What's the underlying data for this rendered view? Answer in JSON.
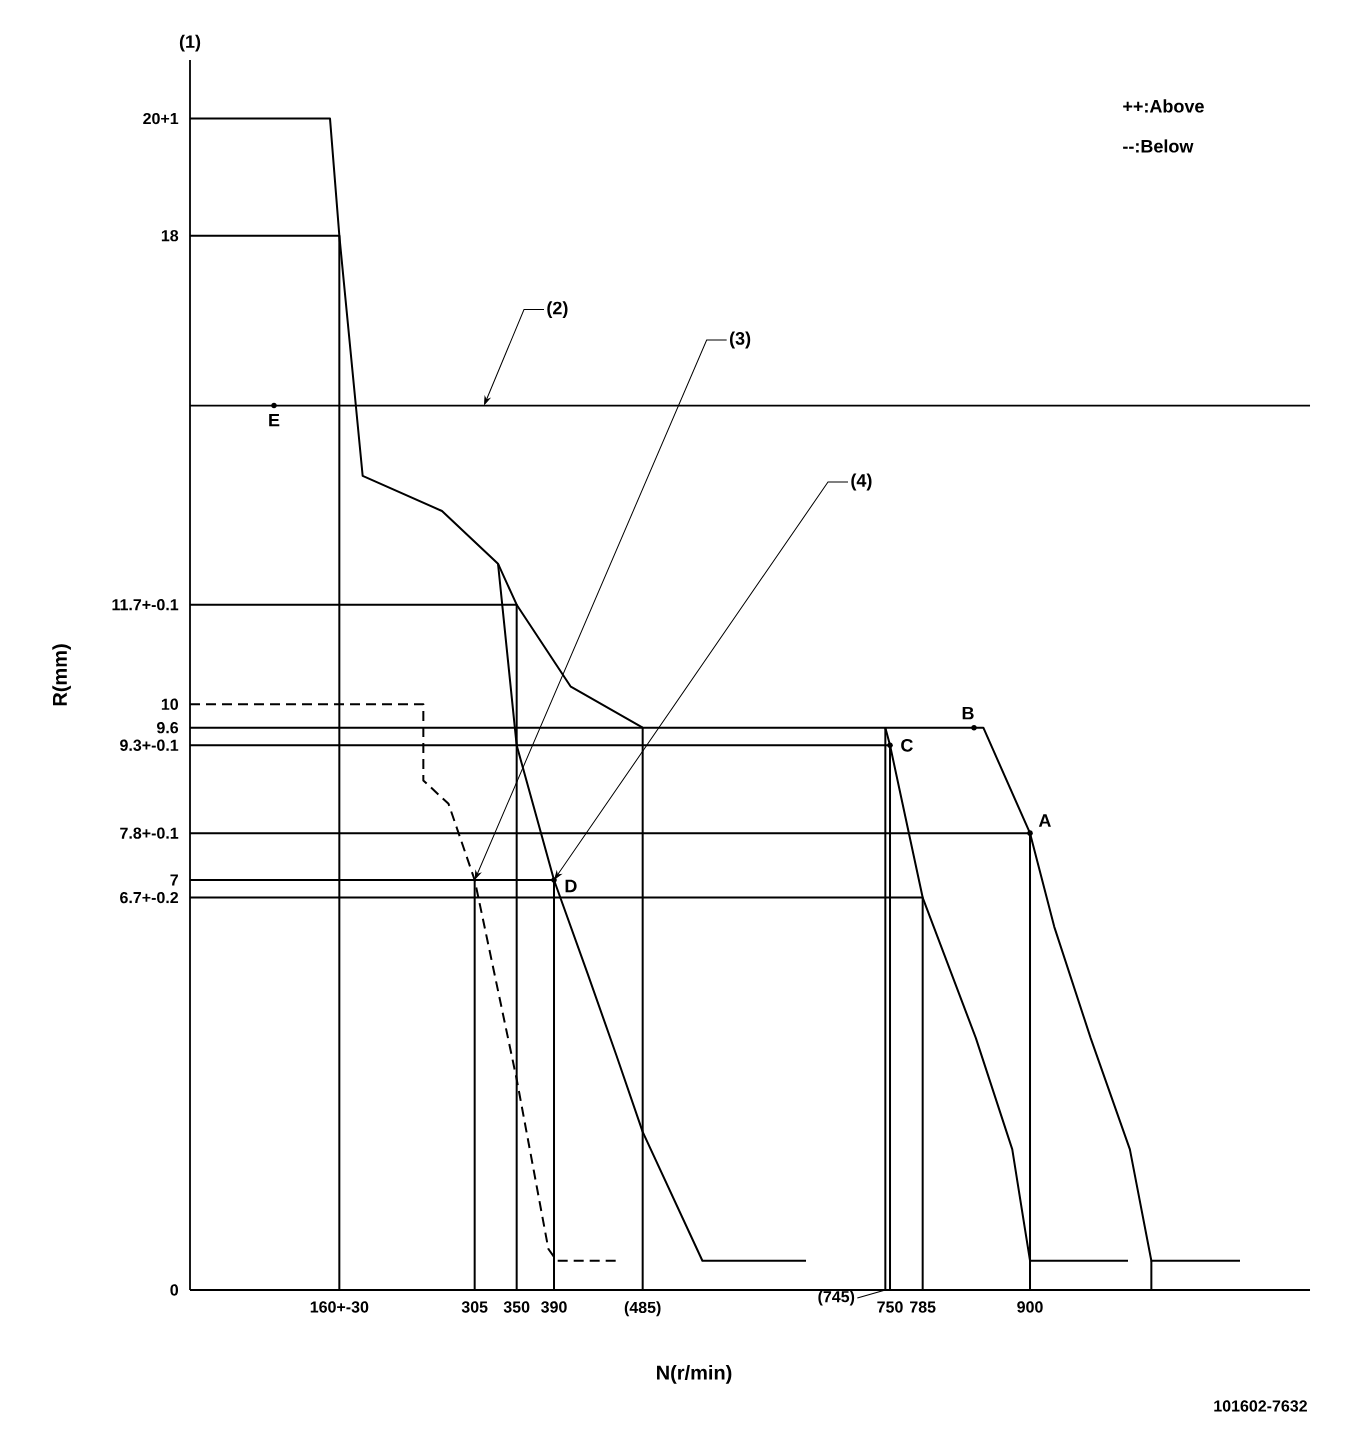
{
  "chart_data": {
    "type": "line",
    "xlabel": "N(r/min)",
    "ylabel": "R(mm)",
    "xlim": [
      0,
      1200
    ],
    "ylim": [
      0,
      21
    ],
    "xticks": [
      {
        "value": 160,
        "label": "160+-30"
      },
      305,
      350,
      390,
      {
        "value": 485,
        "label": "(485)"
      },
      750,
      785,
      900
    ],
    "yticks": [
      0,
      {
        "value": 6.7,
        "label": "6.7+-0.2"
      },
      7,
      {
        "value": 7.8,
        "label": "7.8+-0.1"
      },
      {
        "value": 9.3,
        "label": "9.3+-0.1"
      },
      9.6,
      10,
      {
        "value": 11.7,
        "label": "11.7+-0.1"
      },
      18,
      {
        "value": 20,
        "label": "20+1"
      }
    ],
    "series": [
      {
        "color": "#000000",
        "x": [
          0,
          150,
          160,
          185,
          270,
          330,
          350,
          408,
          485,
          850,
          900,
          926,
          965,
          1007,
          1030,
          1125
        ],
        "values": [
          20,
          20,
          18,
          13.9,
          13.3,
          12.4,
          11.7,
          10.3,
          9.6,
          9.6,
          7.8,
          6.2,
          4.3,
          2.4,
          0.5,
          0.5
        ]
      },
      {
        "color": "#000000",
        "x": [
          330,
          350,
          390,
          426,
          457,
          485,
          549,
          660
        ],
        "values": [
          12.4,
          9.3,
          7,
          5.4,
          4,
          2.7,
          0.5,
          0.5
        ]
      },
      {
        "color": "#000000",
        "x": [
          745,
          750,
          785,
          842,
          881,
          900,
          1005
        ],
        "values": [
          9.6,
          9.3,
          6.7,
          4.3,
          2.4,
          0.5,
          0.5
        ]
      },
      {
        "color": "#000000",
        "line_style": "dashed",
        "x": [
          0,
          250,
          250,
          277,
          305,
          350,
          384,
          393,
          457
        ],
        "values": [
          10,
          10,
          8.7,
          8.3,
          7,
          3.6,
          0.7,
          0.5,
          0.5
        ]
      },
      {
        "color": "#000000",
        "x": [
          0,
          160,
          160
        ],
        "values": [
          18,
          18,
          0
        ]
      },
      {
        "color": "#000000",
        "x": [
          0,
          350,
          350
        ],
        "values": [
          11.7,
          11.7,
          0
        ]
      },
      {
        "color": "#000000",
        "x": [
          0,
          485,
          485
        ],
        "values": [
          9.6,
          9.6,
          0
        ]
      },
      {
        "color": "#000000",
        "x": [
          745,
          745
        ],
        "values": [
          9.6,
          0
        ]
      },
      {
        "color": "#000000",
        "x": [
          0,
          750,
          750
        ],
        "values": [
          9.3,
          9.3,
          0
        ]
      },
      {
        "color": "#000000",
        "x": [
          0,
          900,
          900
        ],
        "values": [
          7.8,
          7.8,
          0
        ]
      },
      {
        "color": "#000000",
        "x": [
          0,
          390,
          390
        ],
        "values": [
          7,
          7,
          0
        ]
      },
      {
        "color": "#000000",
        "x": [
          0,
          785,
          785
        ],
        "values": [
          6.7,
          6.7,
          0
        ]
      },
      {
        "color": "#000000",
        "x": [
          305,
          305
        ],
        "values": [
          7,
          0
        ]
      },
      {
        "color": "#000000",
        "x": [
          1030,
          1030
        ],
        "values": [
          0.5,
          0
        ]
      }
    ],
    "ref_lines": [
      {
        "axis": "y",
        "value": 15.1
      }
    ],
    "annotations": [
      "(1)",
      {
        "text": "(2)",
        "x": 315,
        "y": 15.1
      },
      {
        "text": "(3)",
        "x": 305,
        "y": 7
      },
      {
        "text": "(4)",
        "x": 390,
        "y": 7
      },
      {
        "text": "A",
        "x": 900,
        "y": 7.8
      },
      {
        "text": "B",
        "x": 840,
        "y": 9.6
      },
      {
        "text": "C",
        "x": 750,
        "y": 9.3
      },
      {
        "text": "D",
        "x": 390,
        "y": 7
      },
      {
        "text": "E",
        "x": 90,
        "y": 15.1
      },
      {
        "text": "(745)",
        "x": 745,
        "y": 0
      },
      "++:Above",
      "--:Below",
      "101602-7632"
    ]
  }
}
